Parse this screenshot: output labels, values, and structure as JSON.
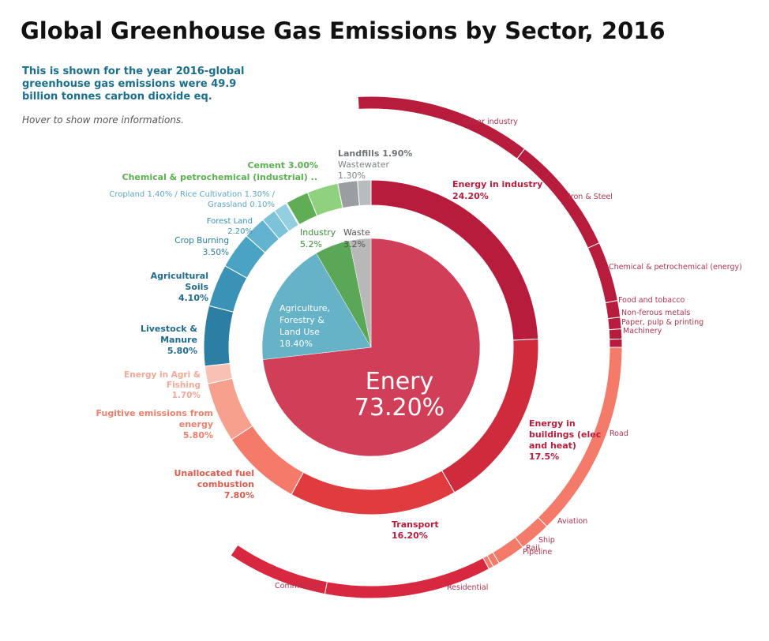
{
  "title": "Global Greenhouse Gas Emissions by Sector, 2016",
  "subtitle": "This is shown for the year 2016-global greenhouse gas emissions were 49.9 billion tonnes carbon dioxide eq.",
  "hover_hint": "Hover to show more informations.",
  "chart_data": {
    "type": "pie",
    "description_unit": "% of global greenhouse gas emissions",
    "inner": [
      {
        "name": "Enery",
        "value": 73.2,
        "label": "73.20%",
        "color": "#d03f57"
      },
      {
        "name": "Agriculture, Forestry & Land Use",
        "value": 18.4,
        "label": "18.40%",
        "color": "#66b3c8"
      },
      {
        "name": "Industry",
        "value": 5.2,
        "label": "5.2%",
        "color": "#5aa757"
      },
      {
        "name": "Waste",
        "value": 3.2,
        "label": "3.2%",
        "color": "#b8b8b8"
      }
    ],
    "middle": [
      {
        "name": "Energy in industry",
        "value": 24.2,
        "label": "24.20%",
        "color": "#b71c3c"
      },
      {
        "name": "Energy in buildings (elec and heat)",
        "value": 17.5,
        "label": "17.5%",
        "color": "#cf2b3c"
      },
      {
        "name": "Transport",
        "value": 16.2,
        "label": "16.20%",
        "color": "#e03b3f"
      },
      {
        "name": "Unallocated fuel combustion",
        "value": 7.8,
        "label": "7.80%",
        "color": "#f47a6a"
      },
      {
        "name": "Fugitive emissions from energy",
        "value": 5.8,
        "label": "5.80%",
        "color": "#f7a08e"
      },
      {
        "name": "Energy in Agri & Fishing",
        "value": 1.7,
        "label": "1.70%",
        "color": "#f9c0b6"
      },
      {
        "name": "Livestock & Manure",
        "value": 5.8,
        "label": "5.80%",
        "color": "#2c7ea2"
      },
      {
        "name": "Agricultural Soils",
        "value": 4.1,
        "label": "4.10%",
        "color": "#3a92b6"
      },
      {
        "name": "Crop Burning",
        "value": 3.5,
        "label": "3.50%",
        "color": "#4ba3c4"
      },
      {
        "name": "Forest Land",
        "value": 2.2,
        "label": "2.20%",
        "color": "#62b3cf"
      },
      {
        "name": "Cropland",
        "value": 1.4,
        "label": "1.40%",
        "color": "#7cc2d8"
      },
      {
        "name": "Rice Cultivation",
        "value": 1.3,
        "label": "1.30%",
        "color": "#93cfe0"
      },
      {
        "name": "Grassland",
        "value": 0.1,
        "label": "0.10%",
        "color": "#a9dbe8"
      },
      {
        "name": "Chemical & petrochemical (industrial)",
        "value": 2.2,
        "label": "",
        "color": "#5fae55"
      },
      {
        "name": "Cement",
        "value": 3.0,
        "label": "3.00%",
        "color": "#8fd17f"
      },
      {
        "name": "Landfills",
        "value": 1.9,
        "label": "1.90%",
        "color": "#999ea1"
      },
      {
        "name": "Wastewater",
        "value": 1.3,
        "label": "1.30%",
        "color": "#b7bcbf"
      }
    ],
    "outer": [
      {
        "name": "Iron & Steel",
        "value": 7.2,
        "color": "#b71c3c"
      },
      {
        "name": "Other industry",
        "value": 10.6,
        "color": "#b71c3c"
      },
      {
        "name": "Chemical & petrochemical (energy)",
        "value": 3.6,
        "color": "#b71c3c"
      },
      {
        "name": "Food and tobacco",
        "value": 1.0,
        "color": "#b71c3c"
      },
      {
        "name": "Non-ferous metals",
        "value": 0.7,
        "color": "#b71c3c"
      },
      {
        "name": "Paper, pulp & printing",
        "value": 0.6,
        "color": "#b71c3c"
      },
      {
        "name": "Machinery",
        "value": 0.5,
        "color": "#b71c3c"
      },
      {
        "name": "Road",
        "value": 11.9,
        "color": "#f47a6a"
      },
      {
        "name": "Aviation",
        "value": 1.9,
        "color": "#f47a6a"
      },
      {
        "name": "Ship",
        "value": 1.7,
        "color": "#f47a6a"
      },
      {
        "name": "Rail",
        "value": 0.4,
        "color": "#f47a6a"
      },
      {
        "name": "Pipeline",
        "value": 0.3,
        "color": "#f47a6a"
      },
      {
        "name": "Residential",
        "value": 10.9,
        "color": "#d8283f"
      },
      {
        "name": "Commercial",
        "value": 6.6,
        "color": "#d8283f"
      }
    ],
    "outer_labels": [
      "Other industry",
      "Iron & Steel",
      "Chemical & petrochemical (energy)",
      "Food and tobacco",
      "Non-ferous metals",
      "Paper, pulp & printing",
      "Machinery",
      "Road",
      "Aviation",
      "Ship",
      "Rail",
      "Pipeline",
      "Residential",
      "Commercial"
    ],
    "middle_labels": {
      "energy_industry": [
        "Energy in industry",
        "24.20%"
      ],
      "energy_buildings": [
        "Energy in",
        "buildings (elec",
        "and heat)",
        "17.5%"
      ],
      "transport": [
        "Transport",
        "16.20%"
      ],
      "unallocated": [
        "Unallocated fuel",
        "combustion",
        "7.80%"
      ],
      "fugitive": [
        "Fugitive emissions from",
        "energy",
        "5.80%"
      ],
      "agri_fishing": [
        "Energy in Agri &",
        "Fishing",
        "1.70%"
      ],
      "livestock": [
        "Livestock &",
        "Manure",
        "5.80%"
      ],
      "soils": [
        "Agricultural",
        "Soils",
        "4.10%"
      ],
      "crop_burning": [
        "Crop Burning",
        "3.50%"
      ],
      "forest": [
        "Forest Land",
        "2.20%"
      ],
      "cropland": [
        "Cropland  1.40% / Rice Cultivation 1.30% /",
        "Grassland 0.10%"
      ],
      "chemical": [
        "Chemical & petrochemical (industrial) .."
      ],
      "cement": [
        "Cement 3.00%"
      ],
      "landfills": [
        "Landfills  1.90%"
      ],
      "wastewater": [
        "Wastewater",
        "1.30%"
      ]
    },
    "inner_labels": {
      "energy": [
        "Enery",
        "73.20%"
      ],
      "agri": [
        "Agriculture,",
        "Forestry &",
        "Land Use",
        "18.40%"
      ],
      "industry": [
        "Industry",
        "5.2%"
      ],
      "waste": [
        "Waste",
        "3.2%"
      ]
    }
  }
}
